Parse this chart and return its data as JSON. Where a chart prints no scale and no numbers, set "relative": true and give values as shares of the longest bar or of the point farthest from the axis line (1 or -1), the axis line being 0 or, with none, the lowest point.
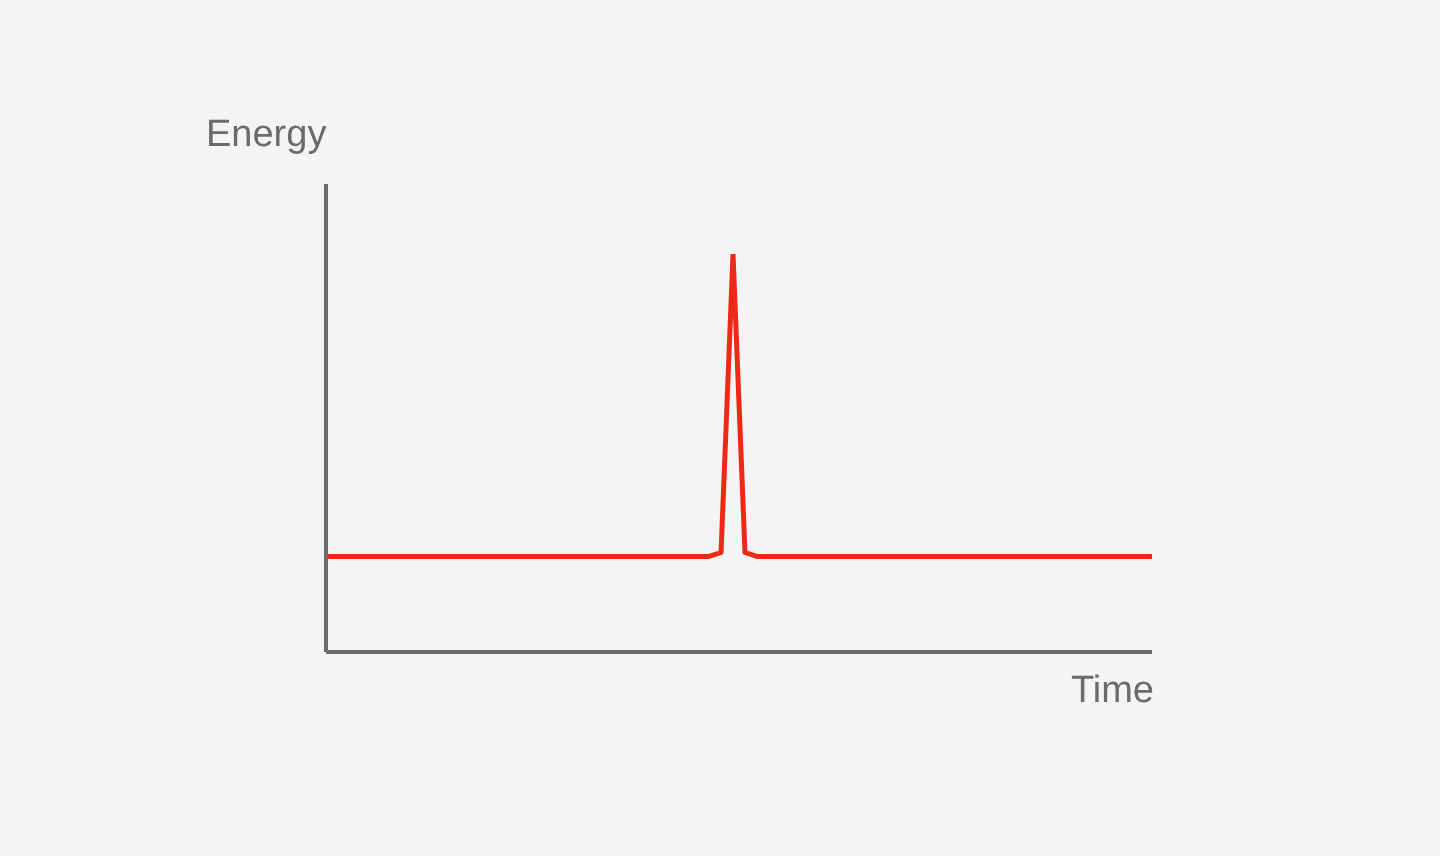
{
  "chart_data": {
    "type": "line",
    "relative": true,
    "xlabel": "Time",
    "ylabel": "Energy",
    "categories": [
      null,
      null,
      null,
      null,
      null,
      null,
      null,
      null,
      null,
      null,
      null,
      null,
      null,
      null,
      null,
      null,
      null,
      null,
      null,
      null,
      null,
      null,
      null,
      null,
      null,
      null,
      null,
      null,
      null,
      null,
      null,
      null,
      null,
      null,
      null,
      null,
      null,
      null,
      null,
      null,
      null,
      null,
      null,
      null,
      null,
      null,
      null,
      null,
      null,
      null,
      null,
      null,
      null,
      null,
      null,
      null,
      null,
      null,
      null,
      null,
      null,
      null,
      null,
      null,
      null,
      null,
      null,
      null,
      null,
      null
    ],
    "series": [
      {
        "color": "#ee2a17",
        "values": [
          0.24,
          0.24,
          0.24,
          0.24,
          0.24,
          0.24,
          0.24,
          0.24,
          0.24,
          0.24,
          0.24,
          0.24,
          0.24,
          0.24,
          0.24,
          0.24,
          0.24,
          0.24,
          0.24,
          0.24,
          0.24,
          0.24,
          0.24,
          0.24,
          0.24,
          0.24,
          0.24,
          0.24,
          0.24,
          0.24,
          0.24,
          0.24,
          0.24,
          0.25,
          1,
          0.25,
          0.24,
          0.24,
          0.24,
          0.24,
          0.24,
          0.24,
          0.24,
          0.24,
          0.24,
          0.24,
          0.24,
          0.24,
          0.24,
          0.24,
          0.24,
          0.24,
          0.24,
          0.24,
          0.24,
          0.24,
          0.24,
          0.24,
          0.24,
          0.24,
          0.24,
          0.24,
          0.24,
          0.24,
          0.24,
          0.24,
          0.24,
          0.24,
          0.24,
          0.24
        ]
      }
    ],
    "marker": "none",
    "grid": false
  }
}
